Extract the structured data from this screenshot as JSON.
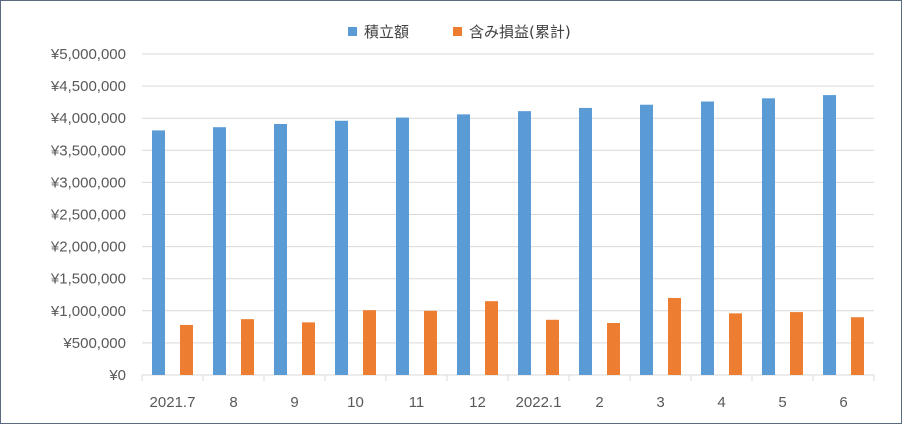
{
  "chart_data": {
    "type": "bar",
    "categories": [
      "2021.7",
      "8",
      "9",
      "10",
      "11",
      "12",
      "2022.1",
      "2",
      "3",
      "4",
      "5",
      "6"
    ],
    "series": [
      {
        "name": "積立額",
        "color": "#5b9bd5",
        "values": [
          3810000,
          3860000,
          3910000,
          3960000,
          4010000,
          4060000,
          4110000,
          4160000,
          4210000,
          4260000,
          4310000,
          4360000
        ]
      },
      {
        "name": "含み損益(累計)",
        "color": "#ed7d31",
        "values": [
          780000,
          870000,
          820000,
          1010000,
          1000000,
          1150000,
          860000,
          810000,
          1200000,
          960000,
          980000,
          900000
        ]
      }
    ],
    "yticks": [
      "¥0",
      "¥500,000",
      "¥1,000,000",
      "¥1,500,000",
      "¥2,000,000",
      "¥2,500,000",
      "¥3,000,000",
      "¥3,500,000",
      "¥4,000,000",
      "¥4,500,000",
      "¥5,000,000"
    ],
    "ylim": [
      0,
      5000000
    ],
    "grid": true,
    "legend_position": "top-center",
    "title": "",
    "xlabel": "",
    "ylabel": ""
  }
}
